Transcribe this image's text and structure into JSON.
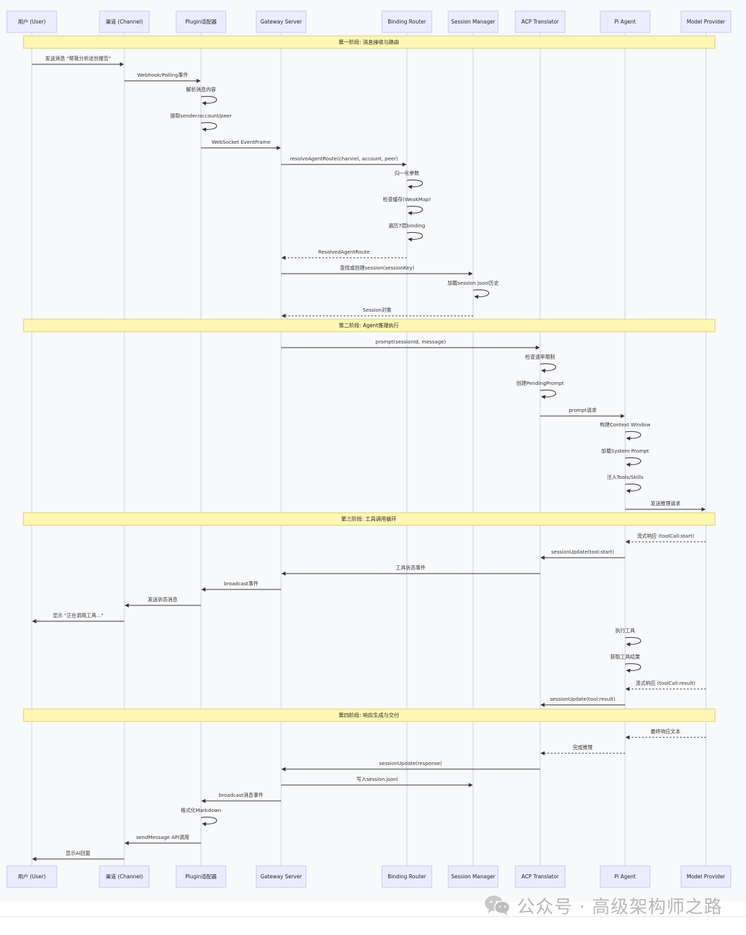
{
  "actors": [
    {
      "id": "user",
      "label": "用户 (User)"
    },
    {
      "id": "channel",
      "label": "渠道 (Channel)"
    },
    {
      "id": "plugin",
      "label": "Plugin适配器"
    },
    {
      "id": "gateway",
      "label": "Gateway Server"
    },
    {
      "id": "router",
      "label": "Binding Router"
    },
    {
      "id": "session",
      "label": "Session Manager"
    },
    {
      "id": "acp",
      "label": "ACP Translator"
    },
    {
      "id": "agent",
      "label": "Pi Agent"
    },
    {
      "id": "model",
      "label": "Model Provider"
    }
  ],
  "phases": [
    "第一阶段: 消息接收与路由",
    "第二阶段: Agent推理执行",
    "第三阶段: 工具调用循环",
    "第四阶段: 响应生成与交付"
  ],
  "steps": [
    {
      "kind": "phase",
      "phase": 0
    },
    {
      "kind": "msg",
      "from": "user",
      "to": "channel",
      "label": "发送消息 \"帮我分析这份报告\""
    },
    {
      "kind": "msg",
      "from": "channel",
      "to": "plugin",
      "label": "Webhook/Polling事件"
    },
    {
      "kind": "self",
      "at": "plugin",
      "label": "解析消息内容"
    },
    {
      "kind": "self",
      "at": "plugin",
      "label": "提取sender/account/peer"
    },
    {
      "kind": "msg",
      "from": "plugin",
      "to": "gateway",
      "label": "WebSocket EventFrame"
    },
    {
      "kind": "msg",
      "from": "gateway",
      "to": "router",
      "label": "resolveAgentRoute(channel, account, peer)"
    },
    {
      "kind": "self",
      "at": "router",
      "label": "归一化参数"
    },
    {
      "kind": "self",
      "at": "router",
      "label": "检查缓存(WeakMap)"
    },
    {
      "kind": "self",
      "at": "router",
      "label": "遍历7层binding"
    },
    {
      "kind": "msg",
      "from": "router",
      "to": "gateway",
      "label": "ResolvedAgentRoute",
      "dashed": true
    },
    {
      "kind": "msg",
      "from": "gateway",
      "to": "session",
      "label": "查找或创建session(sessionKey)"
    },
    {
      "kind": "self",
      "at": "session",
      "label": "加载session.jsonl历史"
    },
    {
      "kind": "msg",
      "from": "session",
      "to": "gateway",
      "label": "Session对象",
      "dashed": true
    },
    {
      "kind": "phase",
      "phase": 1
    },
    {
      "kind": "msg",
      "from": "gateway",
      "to": "acp",
      "label": "prompt(sessionId, message)"
    },
    {
      "kind": "self",
      "at": "acp",
      "label": "检查速率限制"
    },
    {
      "kind": "self",
      "at": "acp",
      "label": "创建PendingPrompt"
    },
    {
      "kind": "msg",
      "from": "acp",
      "to": "agent",
      "label": "prompt请求"
    },
    {
      "kind": "self",
      "at": "agent",
      "label": "构建Context Window"
    },
    {
      "kind": "self",
      "at": "agent",
      "label": "加载System Prompt"
    },
    {
      "kind": "self",
      "at": "agent",
      "label": "注入Tools/Skills"
    },
    {
      "kind": "msg",
      "from": "agent",
      "to": "model",
      "label": "发送推理请求"
    },
    {
      "kind": "phase",
      "phase": 2
    },
    {
      "kind": "msg",
      "from": "model",
      "to": "agent",
      "label": "流式响应 (toolCall:start)",
      "dashed": true
    },
    {
      "kind": "msg",
      "from": "agent",
      "to": "acp",
      "label": "sessionUpdate(tool:start)"
    },
    {
      "kind": "msg",
      "from": "acp",
      "to": "gateway",
      "label": "工具状态事件"
    },
    {
      "kind": "msg",
      "from": "gateway",
      "to": "plugin",
      "label": "broadcast事件"
    },
    {
      "kind": "msg",
      "from": "plugin",
      "to": "channel",
      "label": "发送状态消息"
    },
    {
      "kind": "msg",
      "from": "channel",
      "to": "user",
      "label": "显示 \"正在调用工具...\""
    },
    {
      "kind": "self",
      "at": "agent",
      "label": "执行工具"
    },
    {
      "kind": "self",
      "at": "agent",
      "label": "获取工具结果"
    },
    {
      "kind": "msg",
      "from": "model",
      "to": "agent",
      "label": "流式响应 (toolCall:result)",
      "dashed": true
    },
    {
      "kind": "msg",
      "from": "agent",
      "to": "acp",
      "label": "sessionUpdate(tool:result)"
    },
    {
      "kind": "phase",
      "phase": 3
    },
    {
      "kind": "msg",
      "from": "model",
      "to": "agent",
      "label": "最终响应文本",
      "dashed": true
    },
    {
      "kind": "msg",
      "from": "agent",
      "to": "acp",
      "label": "完成推理",
      "dashed": true
    },
    {
      "kind": "msg",
      "from": "acp",
      "to": "gateway",
      "label": "sessionUpdate(response)"
    },
    {
      "kind": "msg",
      "from": "gateway",
      "to": "session",
      "label": "写入session.jsonl"
    },
    {
      "kind": "msg",
      "from": "gateway",
      "to": "plugin",
      "label": "broadcast消息事件"
    },
    {
      "kind": "self",
      "at": "plugin",
      "label": "格式化Markdown"
    },
    {
      "kind": "msg",
      "from": "plugin",
      "to": "channel",
      "label": "sendMessage API调用"
    },
    {
      "kind": "msg",
      "from": "channel",
      "to": "user",
      "label": "显示AI回复"
    }
  ],
  "watermark": {
    "text": "公众号 · 高级架构师之路",
    "icon": "wechat-icon"
  },
  "colors": {
    "actor_fill": "#ececff",
    "phase_fill": "#fff7b3",
    "line": "#333333",
    "background": "#f8f9fb"
  }
}
